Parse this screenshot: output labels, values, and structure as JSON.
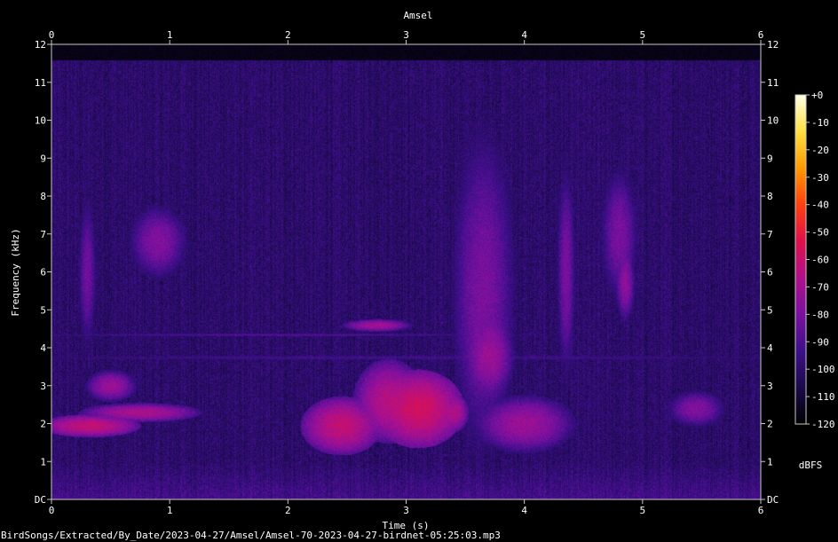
{
  "chart_data": {
    "type": "heatmap",
    "title": "Amsel",
    "xlabel": "Time (s)",
    "ylabel": "Frequency (kHz)",
    "xlim": [
      0,
      6
    ],
    "ylim": [
      0,
      12
    ],
    "x_ticks": [
      "0",
      "1",
      "2",
      "3",
      "4",
      "5",
      "6"
    ],
    "y_ticks": [
      "DC",
      "1",
      "2",
      "3",
      "4",
      "5",
      "6",
      "7",
      "8",
      "9",
      "10",
      "11",
      "12"
    ],
    "colorbar": {
      "label": "dBFS",
      "range": [
        -120,
        0
      ],
      "ticks": [
        "+0",
        "-10",
        "-20",
        "-30",
        "-40",
        "-50",
        "-60",
        "-70",
        "-80",
        "-90",
        "-100",
        "-110",
        "-120"
      ],
      "colors": [
        "#000000",
        "#1a0a4a",
        "#3d0f8a",
        "#7a10a0",
        "#b0108a",
        "#e0104a",
        "#ff4010",
        "#ff9a00",
        "#ffe040",
        "#ffffe8"
      ]
    },
    "features": [
      {
        "t": 0.32,
        "f": 1.95,
        "dur": 0.5,
        "bw": 0.35,
        "level": -62
      },
      {
        "t": 0.75,
        "f": 2.3,
        "dur": 0.6,
        "bw": 0.3,
        "level": -68
      },
      {
        "t": 0.5,
        "f": 3.0,
        "dur": 0.25,
        "bw": 0.5,
        "level": -72
      },
      {
        "t": 0.3,
        "f": 6.0,
        "dur": 0.1,
        "bw": 2.5,
        "level": -82
      },
      {
        "t": 0.9,
        "f": 6.8,
        "dur": 0.3,
        "bw": 1.2,
        "level": -78
      },
      {
        "t": 2.45,
        "f": 1.95,
        "dur": 0.4,
        "bw": 0.9,
        "level": -62
      },
      {
        "t": 2.85,
        "f": 2.6,
        "dur": 0.35,
        "bw": 1.3,
        "level": -65
      },
      {
        "t": 3.1,
        "f": 2.4,
        "dur": 0.45,
        "bw": 1.2,
        "level": -58
      },
      {
        "t": 3.4,
        "f": 2.3,
        "dur": 0.15,
        "bw": 0.6,
        "level": -66
      },
      {
        "t": 2.75,
        "f": 4.6,
        "dur": 0.35,
        "bw": 0.2,
        "level": -70
      },
      {
        "t": 3.65,
        "f": 5.5,
        "dur": 0.35,
        "bw": 5.5,
        "level": -80
      },
      {
        "t": 3.7,
        "f": 3.8,
        "dur": 0.25,
        "bw": 1.4,
        "level": -72
      },
      {
        "t": 4.0,
        "f": 2.0,
        "dur": 0.5,
        "bw": 0.9,
        "level": -72
      },
      {
        "t": 4.35,
        "f": 6.0,
        "dur": 0.1,
        "bw": 3.5,
        "level": -80
      },
      {
        "t": 4.8,
        "f": 7.0,
        "dur": 0.2,
        "bw": 2.2,
        "level": -80
      },
      {
        "t": 4.85,
        "f": 5.7,
        "dur": 0.1,
        "bw": 1.2,
        "level": -75
      },
      {
        "t": 5.45,
        "f": 2.4,
        "dur": 0.3,
        "bw": 0.6,
        "level": -78
      },
      {
        "t": 1.9,
        "f": 4.35,
        "dur": 3.5,
        "bw": 0.06,
        "level": -88
      },
      {
        "t": 3.0,
        "f": 3.75,
        "dur": 6.0,
        "bw": 0.1,
        "level": -92
      }
    ],
    "noise_floor_dbfs": -100,
    "noise_top_khz": 11.6
  },
  "footer": {
    "file_path": "BirdSongs/Extracted/By_Date/2023-04-27/Amsel/Amsel-70-2023-04-27-birdnet-05:25:03.mp3"
  }
}
